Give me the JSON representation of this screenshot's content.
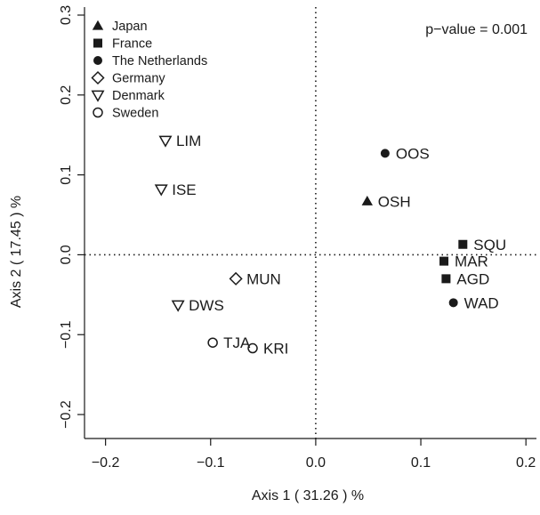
{
  "chart_data": {
    "type": "scatter",
    "xlabel": "Axis 1 ( 31.26 ) %",
    "ylabel": "Axis 2 ( 17.45 ) %",
    "xlim": [
      -0.22,
      0.21
    ],
    "ylim": [
      -0.23,
      0.31
    ],
    "xticks": [
      -0.2,
      -0.1,
      0.0,
      0.1,
      0.2
    ],
    "xtick_labels": [
      "−0.2",
      "−0.1",
      "0.0",
      "0.1",
      "0.2"
    ],
    "yticks": [
      -0.2,
      -0.1,
      0.0,
      0.1,
      0.2,
      0.3
    ],
    "ytick_labels": [
      "−0.2",
      "−0.1",
      "0.0",
      "0.1",
      "0.2",
      "0.3"
    ],
    "reference_lines": {
      "x": 0,
      "y": 0,
      "style": "dotted"
    },
    "annotation": "p−value = 0.001",
    "legend_position": "top-left",
    "legend": [
      {
        "name": "Japan",
        "marker": "triangle"
      },
      {
        "name": "France",
        "marker": "square"
      },
      {
        "name": "The Netherlands",
        "marker": "circle"
      },
      {
        "name": "Germany",
        "marker": "diamond-open"
      },
      {
        "name": "Denmark",
        "marker": "triangle-down-open"
      },
      {
        "name": "Sweden",
        "marker": "circle-open"
      }
    ],
    "points": [
      {
        "label": "LIM",
        "x": -0.143,
        "y": 0.143,
        "group": "Denmark"
      },
      {
        "label": "ISE",
        "x": -0.147,
        "y": 0.082,
        "group": "Denmark"
      },
      {
        "label": "DWS",
        "x": -0.131,
        "y": -0.063,
        "group": "Denmark"
      },
      {
        "label": "MUN",
        "x": -0.076,
        "y": -0.03,
        "group": "Germany"
      },
      {
        "label": "TJA",
        "x": -0.098,
        "y": -0.11,
        "group": "Sweden"
      },
      {
        "label": "KRI",
        "x": -0.06,
        "y": -0.117,
        "group": "Sweden"
      },
      {
        "label": "OOS",
        "x": 0.066,
        "y": 0.127,
        "group": "The Netherlands"
      },
      {
        "label": "WAD",
        "x": 0.131,
        "y": -0.06,
        "group": "The Netherlands"
      },
      {
        "label": "OSH",
        "x": 0.049,
        "y": 0.067,
        "group": "Japan"
      },
      {
        "label": "SQU",
        "x": 0.14,
        "y": 0.013,
        "group": "France"
      },
      {
        "label": "MAR",
        "x": 0.122,
        "y": -0.008,
        "group": "France"
      },
      {
        "label": "AGD",
        "x": 0.124,
        "y": -0.03,
        "group": "France"
      }
    ]
  }
}
